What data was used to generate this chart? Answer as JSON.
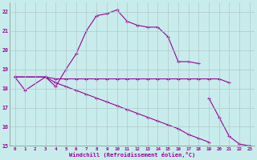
{
  "xlabel": "Windchill (Refroidissement éolien,°C)",
  "background_color": "#c8ecec",
  "line_color": "#990099",
  "grid_color": "#b0c8c8",
  "series1_x": [
    0,
    1,
    3,
    4,
    5,
    6,
    7,
    8,
    9,
    10,
    11,
    12,
    13,
    14,
    15,
    16,
    17,
    18
  ],
  "series1_y": [
    18.6,
    17.9,
    18.6,
    18.1,
    19.0,
    19.8,
    21.0,
    21.8,
    21.9,
    22.1,
    21.5,
    21.3,
    21.2,
    21.2,
    20.7,
    19.4,
    19.4,
    19.3
  ],
  "series2_x": [
    0,
    3,
    4,
    5,
    6,
    7,
    8,
    9,
    10,
    11,
    12,
    13,
    14,
    15,
    16,
    17,
    18,
    19,
    20,
    21
  ],
  "series2_y": [
    18.6,
    18.6,
    18.5,
    18.5,
    18.5,
    18.5,
    18.5,
    18.5,
    18.5,
    18.5,
    18.5,
    18.5,
    18.5,
    18.5,
    18.5,
    18.5,
    18.5,
    18.5,
    18.5,
    18.3
  ],
  "series3_x": [
    0,
    3,
    4,
    5,
    6,
    7,
    8,
    9,
    10,
    11,
    12,
    13,
    14,
    15,
    16,
    17,
    18,
    19
  ],
  "series3_y": [
    18.6,
    18.6,
    18.3,
    18.1,
    17.9,
    17.7,
    17.5,
    17.3,
    17.1,
    16.9,
    16.7,
    16.5,
    16.3,
    16.1,
    15.9,
    15.6,
    15.4,
    15.2
  ],
  "series4_x": [
    19,
    20,
    21,
    22,
    23
  ],
  "series4_y": [
    17.5,
    16.5,
    15.5,
    15.1,
    15.0
  ],
  "ylim": [
    15.0,
    22.5
  ],
  "xlim": [
    -0.5,
    23.5
  ],
  "yticks": [
    15,
    16,
    17,
    18,
    19,
    20,
    21,
    22
  ],
  "xticks": [
    0,
    1,
    2,
    3,
    4,
    5,
    6,
    7,
    8,
    9,
    10,
    11,
    12,
    13,
    14,
    15,
    16,
    17,
    18,
    19,
    20,
    21,
    22,
    23
  ]
}
